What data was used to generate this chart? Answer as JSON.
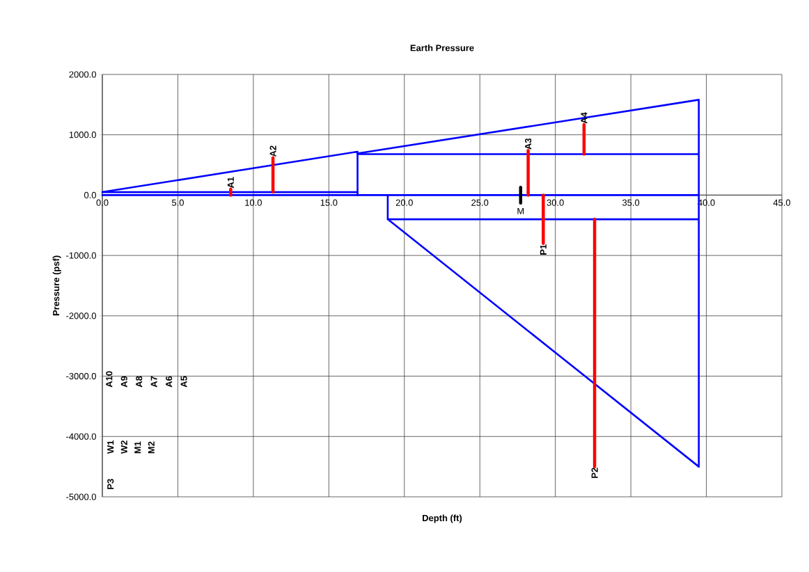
{
  "chart_data": {
    "type": "line",
    "title": "Earth Pressure",
    "xlabel": "Depth (ft)",
    "ylabel": "Pressure (psf)",
    "xlim": [
      0,
      45
    ],
    "ylim": [
      -5000,
      2000
    ],
    "xticks": [
      {
        "value": 0,
        "label": "0.0"
      },
      {
        "value": 5,
        "label": "5.0"
      },
      {
        "value": 10,
        "label": "10.0"
      },
      {
        "value": 15,
        "label": "15.0"
      },
      {
        "value": 20,
        "label": "20.0"
      },
      {
        "value": 25,
        "label": "25.0"
      },
      {
        "value": 30,
        "label": "30.0"
      },
      {
        "value": 35,
        "label": "35.0"
      },
      {
        "value": 40,
        "label": "40.0"
      },
      {
        "value": 45,
        "label": "45.0"
      }
    ],
    "yticks": [
      {
        "value": -5000,
        "label": "-5000.0"
      },
      {
        "value": -4000,
        "label": "-4000.0"
      },
      {
        "value": -3000,
        "label": "-3000.0"
      },
      {
        "value": -2000,
        "label": "-2000.0"
      },
      {
        "value": -1000,
        "label": "-1000.0"
      },
      {
        "value": 0,
        "label": "0.0"
      },
      {
        "value": 1000,
        "label": "1000.0"
      },
      {
        "value": 2000,
        "label": "2000.0"
      }
    ],
    "grid": true,
    "marker": "none",
    "line_style": "solid",
    "series": [
      {
        "color": "#0000ff",
        "x": [
          0,
          16.9,
          16.9
        ],
        "values": [
          50,
          720,
          0
        ]
      },
      {
        "color": "#0000ff",
        "x": [
          0,
          16.9
        ],
        "values": [
          50,
          50
        ]
      },
      {
        "color": "#0000ff",
        "x": [
          0,
          39.5
        ],
        "values": [
          0,
          0
        ]
      },
      {
        "color": "#0000ff",
        "x": [
          16.9,
          39.5
        ],
        "values": [
          680,
          680
        ]
      },
      {
        "color": "#0000ff",
        "x": [
          16.9,
          39.5,
          39.5
        ],
        "values": [
          690,
          1580,
          -4500
        ]
      },
      {
        "color": "#0000ff",
        "x": [
          18.9,
          18.9,
          39.5
        ],
        "values": [
          0,
          -400,
          -4500
        ]
      },
      {
        "color": "#0000ff",
        "x": [
          18.9,
          39.5
        ],
        "values": [
          -400,
          -400
        ]
      },
      {
        "name": "A1",
        "color": "#ff0000",
        "x": [
          8.5,
          8.5
        ],
        "values": [
          0,
          100
        ]
      },
      {
        "name": "A2",
        "color": "#ff0000",
        "x": [
          11.3,
          11.3
        ],
        "values": [
          50,
          620
        ]
      },
      {
        "name": "A3",
        "color": "#ff0000",
        "x": [
          28.2,
          28.2
        ],
        "values": [
          0,
          740
        ]
      },
      {
        "name": "A4",
        "color": "#ff0000",
        "x": [
          31.9,
          31.9
        ],
        "values": [
          680,
          1170
        ]
      },
      {
        "name": "P1",
        "color": "#ff0000",
        "x": [
          29.2,
          29.2
        ],
        "values": [
          0,
          -800
        ]
      },
      {
        "name": "P2",
        "color": "#ff0000",
        "x": [
          32.6,
          32.6
        ],
        "values": [
          -400,
          -4500
        ]
      },
      {
        "name": "M",
        "color": "#000000",
        "x": [
          27.7,
          27.7
        ],
        "values": [
          -130,
          130
        ]
      }
    ],
    "annotations": [
      "A5",
      "A6",
      "A7",
      "A8",
      "A9",
      "A10",
      "W1",
      "W2",
      "M1",
      "M2",
      "P3"
    ]
  }
}
